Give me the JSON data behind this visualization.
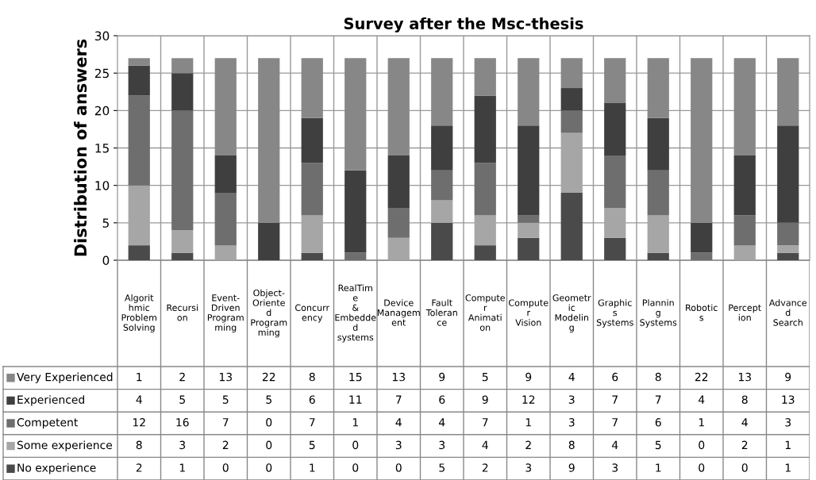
{
  "chart_data": {
    "type": "bar",
    "stacked": true,
    "title": "Survey after the Msc-thesis",
    "ylabel": "Distribution of answers",
    "categories": [
      "Algorithmic Problem Solving",
      "Recursion",
      "Event-Driven Programming",
      "Object-Oriented Programming",
      "Concurrency",
      "RealTime & Embedded systems",
      "Device Management",
      "Fault Tolerance",
      "Computer Animation",
      "Computer Vision",
      "Geometric Modeling",
      "Graphics Systems",
      "Planning Systems",
      "Robotics",
      "Perception",
      "Advanced Search"
    ],
    "series": [
      {
        "name": "No experience",
        "color": "#4a4a4a",
        "values": [
          2,
          1,
          0,
          0,
          1,
          0,
          0,
          5,
          2,
          3,
          9,
          3,
          1,
          0,
          0,
          1
        ]
      },
      {
        "name": "Some experience",
        "color": "#a6a6a6",
        "values": [
          8,
          3,
          2,
          0,
          5,
          0,
          3,
          3,
          4,
          2,
          8,
          4,
          5,
          0,
          2,
          1
        ]
      },
      {
        "name": "Competent",
        "color": "#6e6e6e",
        "values": [
          12,
          16,
          7,
          0,
          7,
          1,
          4,
          4,
          7,
          1,
          3,
          7,
          6,
          1,
          4,
          3
        ]
      },
      {
        "name": "Experienced",
        "color": "#3f3f3f",
        "values": [
          4,
          5,
          5,
          5,
          6,
          11,
          7,
          6,
          9,
          12,
          3,
          7,
          7,
          4,
          8,
          13
        ]
      },
      {
        "name": "Very Experienced",
        "color": "#878787",
        "values": [
          1,
          2,
          13,
          22,
          8,
          15,
          13,
          9,
          5,
          9,
          4,
          6,
          8,
          22,
          13,
          9
        ]
      }
    ],
    "ylim": [
      0,
      30
    ],
    "yticks": [
      0,
      5,
      10,
      15,
      20,
      25,
      30
    ],
    "grid": true,
    "data_labels": true,
    "legend": "bottom left"
  }
}
